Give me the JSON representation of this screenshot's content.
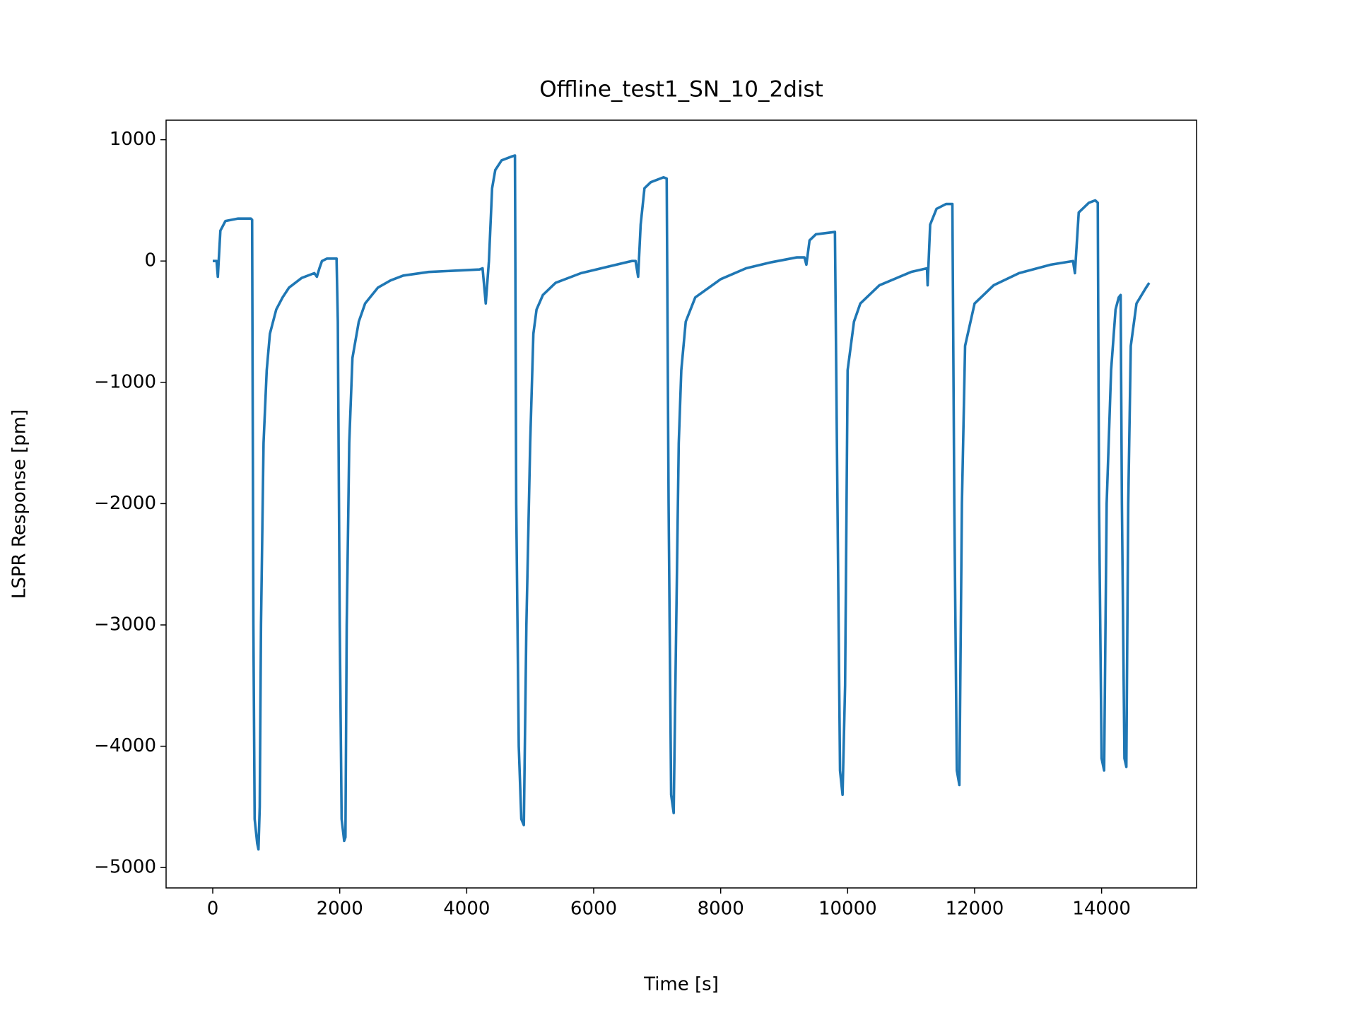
{
  "chart_data": {
    "type": "line",
    "title": "Offline_test1_SN_10_2dist",
    "x_label": "Time [s]",
    "y_label": "LSPR Response [pm]",
    "x": [
      0,
      60,
      80,
      120,
      200,
      400,
      600,
      620,
      640,
      660,
      700,
      720,
      740,
      760,
      800,
      850,
      900,
      1000,
      1100,
      1200,
      1400,
      1600,
      1640,
      1680,
      1720,
      1800,
      1950,
      1970,
      2000,
      2030,
      2070,
      2090,
      2110,
      2150,
      2200,
      2300,
      2400,
      2600,
      2800,
      3000,
      3400,
      3800,
      4200,
      4250,
      4300,
      4350,
      4400,
      4450,
      4550,
      4700,
      4760,
      4780,
      4820,
      4860,
      4900,
      4940,
      5000,
      5050,
      5100,
      5200,
      5400,
      5800,
      6200,
      6600,
      6660,
      6700,
      6740,
      6800,
      6900,
      7100,
      7150,
      7180,
      7220,
      7260,
      7300,
      7340,
      7380,
      7450,
      7600,
      8000,
      8400,
      8800,
      9200,
      9320,
      9350,
      9400,
      9500,
      9800,
      9840,
      9880,
      9920,
      9960,
      10000,
      10100,
      10200,
      10500,
      11000,
      11250,
      11260,
      11300,
      11400,
      11550,
      11650,
      11680,
      11720,
      11760,
      11800,
      11850,
      12000,
      12300,
      12700,
      13200,
      13550,
      13580,
      13640,
      13800,
      13900,
      13940,
      13960,
      14000,
      14040,
      14080,
      14150,
      14220,
      14270,
      14300,
      14320,
      14360,
      14390,
      14420,
      14460,
      14550,
      14700,
      14750
    ],
    "series": [
      {
        "name": "LSPR",
        "color": "#1f77b4",
        "values": [
          0,
          0,
          -130,
          250,
          330,
          350,
          350,
          340,
          -3000,
          -4600,
          -4800,
          -4850,
          -4500,
          -3000,
          -1500,
          -900,
          -600,
          -400,
          -300,
          -220,
          -140,
          -100,
          -130,
          -60,
          0,
          20,
          20,
          -500,
          -3000,
          -4600,
          -4780,
          -4750,
          -3000,
          -1500,
          -800,
          -500,
          -350,
          -220,
          -160,
          -120,
          -90,
          -80,
          -70,
          -60,
          -350,
          0,
          600,
          750,
          830,
          860,
          870,
          -2000,
          -4000,
          -4600,
          -4650,
          -3000,
          -1500,
          -600,
          -400,
          -280,
          -180,
          -100,
          -50,
          0,
          0,
          -130,
          300,
          600,
          650,
          690,
          680,
          -2000,
          -4400,
          -4550,
          -3000,
          -1500,
          -900,
          -500,
          -300,
          -150,
          -60,
          -10,
          30,
          30,
          -30,
          170,
          220,
          240,
          -2000,
          -4200,
          -4400,
          -3500,
          -900,
          -500,
          -350,
          -200,
          -90,
          -60,
          -200,
          300,
          430,
          470,
          470,
          -2000,
          -4200,
          -4320,
          -2000,
          -700,
          -350,
          -200,
          -100,
          -30,
          0,
          -100,
          400,
          480,
          500,
          480,
          -2000,
          -4100,
          -4200,
          -2000,
          -900,
          -400,
          -300,
          -280,
          -2000,
          -4100,
          -4170,
          -2000,
          -700,
          -350,
          -220,
          -180
        ]
      }
    ],
    "xlim": [
      -735,
      15496
    ],
    "ylim": [
      -5168,
      1161
    ],
    "xticks": [
      0,
      2000,
      4000,
      6000,
      8000,
      10000,
      12000,
      14000
    ],
    "yticks": [
      {
        "value": -5000,
        "label": "−5000"
      },
      {
        "value": -4000,
        "label": "−4000"
      },
      {
        "value": -3000,
        "label": "−3000"
      },
      {
        "value": -2000,
        "label": "−2000"
      },
      {
        "value": -1000,
        "label": "−1000"
      },
      0,
      1000
    ]
  }
}
